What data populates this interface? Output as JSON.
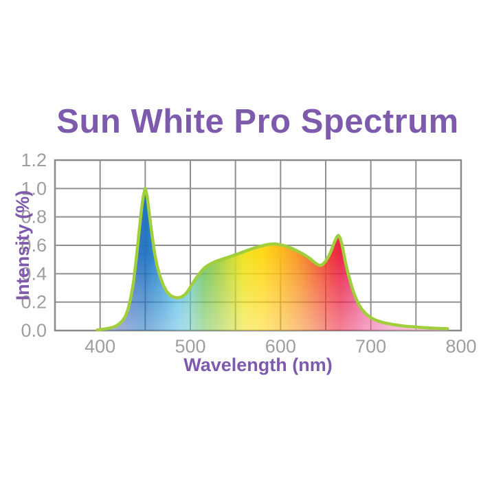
{
  "title": {
    "text": "Sun White Pro Spectrum",
    "color": "#7e5aad"
  },
  "chart_data": {
    "type": "area",
    "title": "Sun White Pro Spectrum",
    "xlabel": "Wavelength (nm)",
    "ylabel": "Intensity (%)",
    "xlim": [
      350,
      800
    ],
    "ylim": [
      0,
      1.2
    ],
    "x_ticks": [
      400,
      500,
      600,
      700,
      800
    ],
    "y_ticks": [
      1.2,
      1.0,
      0.8,
      0.6,
      0.4,
      0.2,
      0.0
    ],
    "y_tick_labels": [
      "1.2",
      "1.0",
      "0.8",
      "0.6",
      "0.4",
      "0.2",
      "0.0"
    ],
    "x_grid_step_nm": 50,
    "y_grid_step": 0.2,
    "grid": true,
    "legend": false,
    "series": [
      {
        "name": "intensity",
        "points": [
          [
            397,
            0.004
          ],
          [
            400,
            0.007
          ],
          [
            405,
            0.011
          ],
          [
            410,
            0.016
          ],
          [
            415,
            0.024
          ],
          [
            420,
            0.04
          ],
          [
            425,
            0.07
          ],
          [
            428,
            0.1
          ],
          [
            431,
            0.15
          ],
          [
            434,
            0.23
          ],
          [
            437,
            0.34
          ],
          [
            440,
            0.5
          ],
          [
            443,
            0.68
          ],
          [
            446,
            0.86
          ],
          [
            448,
            0.95
          ],
          [
            450,
            1.0
          ],
          [
            452,
            0.95
          ],
          [
            454,
            0.85
          ],
          [
            457,
            0.7
          ],
          [
            460,
            0.56
          ],
          [
            463,
            0.46
          ],
          [
            466,
            0.39
          ],
          [
            470,
            0.32
          ],
          [
            474,
            0.272
          ],
          [
            478,
            0.247
          ],
          [
            482,
            0.234
          ],
          [
            486,
            0.23
          ],
          [
            490,
            0.236
          ],
          [
            494,
            0.252
          ],
          [
            498,
            0.285
          ],
          [
            502,
            0.325
          ],
          [
            506,
            0.365
          ],
          [
            510,
            0.4
          ],
          [
            514,
            0.43
          ],
          [
            518,
            0.453
          ],
          [
            523,
            0.472
          ],
          [
            528,
            0.487
          ],
          [
            534,
            0.5
          ],
          [
            540,
            0.512
          ],
          [
            546,
            0.525
          ],
          [
            552,
            0.538
          ],
          [
            558,
            0.552
          ],
          [
            564,
            0.566
          ],
          [
            570,
            0.579
          ],
          [
            576,
            0.591
          ],
          [
            582,
            0.601
          ],
          [
            588,
            0.608
          ],
          [
            594,
            0.61
          ],
          [
            600,
            0.604
          ],
          [
            606,
            0.594
          ],
          [
            612,
            0.58
          ],
          [
            618,
            0.562
          ],
          [
            624,
            0.542
          ],
          [
            630,
            0.518
          ],
          [
            634,
            0.5
          ],
          [
            638,
            0.478
          ],
          [
            641,
            0.464
          ],
          [
            644,
            0.458
          ],
          [
            647,
            0.467
          ],
          [
            650,
            0.489
          ],
          [
            653,
            0.52
          ],
          [
            656,
            0.56
          ],
          [
            659,
            0.612
          ],
          [
            662,
            0.655
          ],
          [
            664,
            0.67
          ],
          [
            666,
            0.652
          ],
          [
            668,
            0.607
          ],
          [
            670,
            0.543
          ],
          [
            672,
            0.478
          ],
          [
            675,
            0.398
          ],
          [
            678,
            0.328
          ],
          [
            681,
            0.268
          ],
          [
            684,
            0.219
          ],
          [
            687,
            0.18
          ],
          [
            690,
            0.15
          ],
          [
            694,
            0.121
          ],
          [
            698,
            0.099
          ],
          [
            702,
            0.083
          ],
          [
            707,
            0.069
          ],
          [
            712,
            0.059
          ],
          [
            718,
            0.05
          ],
          [
            724,
            0.043
          ],
          [
            730,
            0.037
          ],
          [
            737,
            0.031
          ],
          [
            744,
            0.027
          ],
          [
            751,
            0.024
          ],
          [
            758,
            0.021
          ],
          [
            765,
            0.018
          ],
          [
            772,
            0.016
          ],
          [
            779,
            0.014
          ],
          [
            785,
            0.013
          ]
        ]
      }
    ],
    "annotations": {
      "blue_peak": {
        "nm": 450,
        "intensity": 1.0
      },
      "cyan_valley": {
        "nm": 486,
        "intensity": 0.23
      },
      "broad_max": {
        "nm": 590,
        "intensity": 0.61
      },
      "pre_red_dip": {
        "nm": 644,
        "intensity": 0.46
      },
      "red_peak": {
        "nm": 664,
        "intensity": 0.67
      }
    }
  },
  "style": {
    "background": "#ffffff",
    "grid_color": "#8f8f8f",
    "border_color": "#8a8a8a",
    "tick_color": "#9e9e9e",
    "axis_title_color": "#7e5aad",
    "curve_stroke": "#a0ce3c",
    "bottom_fade_opacity": 0.55,
    "spectrum_gradient": [
      {
        "nm": 397,
        "color": "#8794c8"
      },
      {
        "nm": 420,
        "color": "#5270b6"
      },
      {
        "nm": 438,
        "color": "#2e6fbe"
      },
      {
        "nm": 452,
        "color": "#1d72c1"
      },
      {
        "nm": 468,
        "color": "#2f93d2"
      },
      {
        "nm": 485,
        "color": "#54b9e6"
      },
      {
        "nm": 500,
        "color": "#6ac7c0"
      },
      {
        "nm": 515,
        "color": "#6fc45c"
      },
      {
        "nm": 530,
        "color": "#98cb40"
      },
      {
        "nm": 545,
        "color": "#c6d92c"
      },
      {
        "nm": 560,
        "color": "#f0e216"
      },
      {
        "nm": 580,
        "color": "#ffd60e"
      },
      {
        "nm": 600,
        "color": "#fcb915"
      },
      {
        "nm": 620,
        "color": "#f7911f"
      },
      {
        "nm": 640,
        "color": "#f15b29"
      },
      {
        "nm": 657,
        "color": "#ee2c34"
      },
      {
        "nm": 666,
        "color": "#e81b3e"
      },
      {
        "nm": 680,
        "color": "#ea2f66"
      },
      {
        "nm": 695,
        "color": "#ee5694"
      },
      {
        "nm": 720,
        "color": "#f180b5"
      },
      {
        "nm": 755,
        "color": "#f49cc8"
      },
      {
        "nm": 785,
        "color": "#f6abd2"
      }
    ]
  }
}
